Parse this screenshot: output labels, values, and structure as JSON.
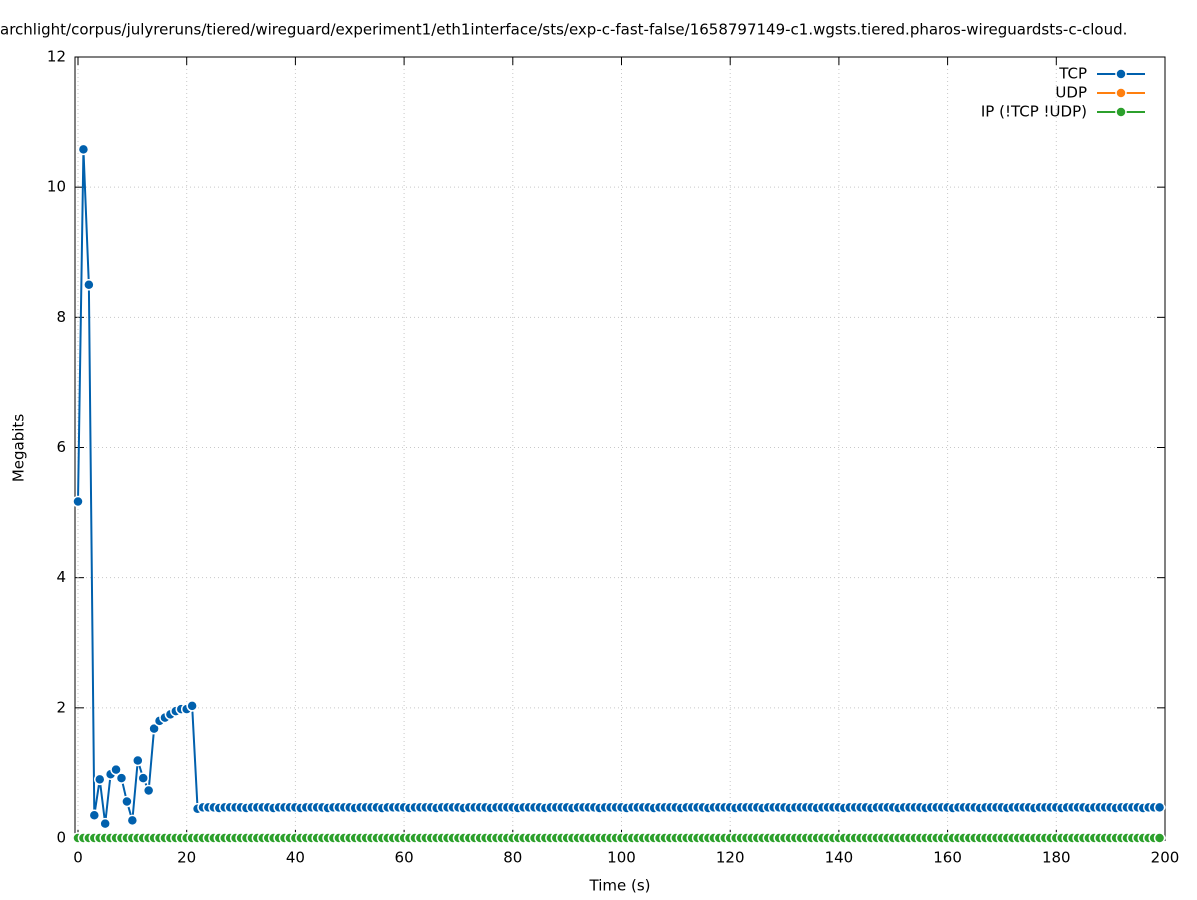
{
  "chart_data": {
    "type": "line",
    "title": "archlight/corpus/julyreruns/tiered/wireguard/experiment1/eth1interface/sts/exp-c-fast-false/1658797149-c1.wgsts.tiered.pharos-wireguardsts-c-cloud.",
    "xlabel": "Time (s)",
    "ylabel": "Megabits",
    "xlim": [
      0,
      200
    ],
    "ylim": [
      0,
      12
    ],
    "xticks": [
      0,
      20,
      40,
      60,
      80,
      100,
      120,
      140,
      160,
      180,
      200
    ],
    "yticks": [
      0,
      2,
      4,
      6,
      8,
      10,
      12
    ],
    "grid": true,
    "legend": "top-right",
    "x": [
      0,
      1,
      2,
      3,
      4,
      5,
      6,
      7,
      8,
      9,
      10,
      11,
      12,
      13,
      14,
      15,
      16,
      17,
      18,
      19,
      20,
      21,
      22,
      23,
      24,
      25,
      26,
      27,
      28,
      29,
      30,
      31,
      32,
      33,
      34,
      35,
      36,
      37,
      38,
      39,
      40,
      41,
      42,
      43,
      44,
      45,
      46,
      47,
      48,
      49,
      50,
      51,
      52,
      53,
      54,
      55,
      56,
      57,
      58,
      59,
      60,
      61,
      62,
      63,
      64,
      65,
      66,
      67,
      68,
      69,
      70,
      71,
      72,
      73,
      74,
      75,
      76,
      77,
      78,
      79,
      80,
      81,
      82,
      83,
      84,
      85,
      86,
      87,
      88,
      89,
      90,
      91,
      92,
      93,
      94,
      95,
      96,
      97,
      98,
      99,
      100,
      101,
      102,
      103,
      104,
      105,
      106,
      107,
      108,
      109,
      110,
      111,
      112,
      113,
      114,
      115,
      116,
      117,
      118,
      119,
      120,
      121,
      122,
      123,
      124,
      125,
      126,
      127,
      128,
      129,
      130,
      131,
      132,
      133,
      134,
      135,
      136,
      137,
      138,
      139,
      140,
      141,
      142,
      143,
      144,
      145,
      146,
      147,
      148,
      149,
      150,
      151,
      152,
      153,
      154,
      155,
      156,
      157,
      158,
      159,
      160,
      161,
      162,
      163,
      164,
      165,
      166,
      167,
      168,
      169,
      170,
      171,
      172,
      173,
      174,
      175,
      176,
      177,
      178,
      179,
      180,
      181,
      182,
      183,
      184,
      185,
      186,
      187,
      188,
      189,
      190,
      191,
      192,
      193,
      194,
      195,
      196,
      197,
      198,
      199
    ],
    "series": [
      {
        "name": "TCP",
        "color": "#0060ad",
        "values": [
          5.17,
          10.58,
          8.5,
          0.35,
          0.9,
          0.22,
          0.98,
          1.05,
          0.92,
          0.56,
          0.27,
          1.19,
          0.92,
          0.73,
          1.68,
          1.8,
          1.85,
          1.9,
          1.95,
          1.98,
          1.98,
          2.03,
          0.45,
          0.47,
          0.47,
          0.47,
          0.46,
          0.47,
          0.47,
          0.47,
          0.47,
          0.46,
          0.47,
          0.47,
          0.47,
          0.47,
          0.46,
          0.47,
          0.47,
          0.47,
          0.47,
          0.46,
          0.47,
          0.47,
          0.47,
          0.47,
          0.46,
          0.47,
          0.47,
          0.47,
          0.47,
          0.46,
          0.47,
          0.47,
          0.47,
          0.47,
          0.46,
          0.47,
          0.47,
          0.47,
          0.47,
          0.46,
          0.47,
          0.47,
          0.47,
          0.47,
          0.46,
          0.47,
          0.47,
          0.47,
          0.47,
          0.46,
          0.47,
          0.47,
          0.47,
          0.47,
          0.46,
          0.47,
          0.47,
          0.47,
          0.47,
          0.46,
          0.47,
          0.47,
          0.47,
          0.47,
          0.46,
          0.47,
          0.47,
          0.47,
          0.47,
          0.46,
          0.47,
          0.47,
          0.47,
          0.47,
          0.46,
          0.47,
          0.47,
          0.47,
          0.47,
          0.46,
          0.47,
          0.47,
          0.47,
          0.47,
          0.46,
          0.47,
          0.47,
          0.47,
          0.47,
          0.46,
          0.47,
          0.47,
          0.47,
          0.47,
          0.46,
          0.47,
          0.47,
          0.47,
          0.47,
          0.46,
          0.47,
          0.47,
          0.47,
          0.47,
          0.46,
          0.47,
          0.47,
          0.47,
          0.47,
          0.46,
          0.47,
          0.47,
          0.47,
          0.47,
          0.46,
          0.47,
          0.47,
          0.47,
          0.47,
          0.46,
          0.47,
          0.47,
          0.47,
          0.47,
          0.46,
          0.47,
          0.47,
          0.47,
          0.47,
          0.46,
          0.47,
          0.47,
          0.47,
          0.47,
          0.46,
          0.47,
          0.47,
          0.47,
          0.47,
          0.46,
          0.47,
          0.47,
          0.47,
          0.47,
          0.46,
          0.47,
          0.47,
          0.47,
          0.47,
          0.46,
          0.47,
          0.47,
          0.47,
          0.47,
          0.46,
          0.47,
          0.47,
          0.47,
          0.47,
          0.46,
          0.47,
          0.47,
          0.47,
          0.47,
          0.46,
          0.47,
          0.47,
          0.47,
          0.47,
          0.46,
          0.47,
          0.47,
          0.47,
          0.47,
          0.46,
          0.47,
          0.47,
          0.47
        ]
      },
      {
        "name": "UDP",
        "color": "#ff7f0e",
        "values": [
          0,
          0,
          0,
          0,
          0,
          0,
          0,
          0,
          0,
          0,
          0,
          0,
          0,
          0,
          0,
          0,
          0,
          0,
          0,
          0,
          0,
          0,
          0,
          0,
          0,
          0,
          0,
          0,
          0,
          0,
          0,
          0,
          0,
          0,
          0,
          0,
          0,
          0,
          0,
          0,
          0,
          0,
          0,
          0,
          0,
          0,
          0,
          0,
          0,
          0,
          0,
          0,
          0,
          0,
          0,
          0,
          0,
          0,
          0,
          0,
          0,
          0,
          0,
          0,
          0,
          0,
          0,
          0,
          0,
          0,
          0,
          0,
          0,
          0,
          0,
          0,
          0,
          0,
          0,
          0,
          0,
          0,
          0,
          0,
          0,
          0,
          0,
          0,
          0,
          0,
          0,
          0,
          0,
          0,
          0,
          0,
          0,
          0,
          0,
          0,
          0,
          0,
          0,
          0,
          0,
          0,
          0,
          0,
          0,
          0,
          0,
          0,
          0,
          0,
          0,
          0,
          0,
          0,
          0,
          0,
          0,
          0,
          0,
          0,
          0,
          0,
          0,
          0,
          0,
          0,
          0,
          0,
          0,
          0,
          0,
          0,
          0,
          0,
          0,
          0,
          0,
          0,
          0,
          0,
          0,
          0,
          0,
          0,
          0,
          0,
          0,
          0,
          0,
          0,
          0,
          0,
          0,
          0,
          0,
          0,
          0,
          0,
          0,
          0,
          0,
          0,
          0,
          0,
          0,
          0,
          0,
          0,
          0,
          0,
          0,
          0,
          0,
          0,
          0,
          0,
          0,
          0,
          0,
          0,
          0,
          0,
          0,
          0,
          0,
          0,
          0,
          0,
          0,
          0,
          0,
          0,
          0,
          0,
          0,
          0
        ]
      },
      {
        "name": "IP (!TCP  !UDP)",
        "color": "#2ca02c",
        "values": [
          0,
          0,
          0,
          0,
          0,
          0,
          0,
          0,
          0,
          0,
          0,
          0,
          0,
          0,
          0,
          0,
          0,
          0,
          0,
          0,
          0,
          0,
          0,
          0,
          0,
          0,
          0,
          0,
          0,
          0,
          0,
          0,
          0,
          0,
          0,
          0,
          0,
          0,
          0,
          0,
          0,
          0,
          0,
          0,
          0,
          0,
          0,
          0,
          0,
          0,
          0,
          0,
          0,
          0,
          0,
          0,
          0,
          0,
          0,
          0,
          0,
          0,
          0,
          0,
          0,
          0,
          0,
          0,
          0,
          0,
          0,
          0,
          0,
          0,
          0,
          0,
          0,
          0,
          0,
          0,
          0,
          0,
          0,
          0,
          0,
          0,
          0,
          0,
          0,
          0,
          0,
          0,
          0,
          0,
          0,
          0,
          0,
          0,
          0,
          0,
          0,
          0,
          0,
          0,
          0,
          0,
          0,
          0,
          0,
          0,
          0,
          0,
          0,
          0,
          0,
          0,
          0,
          0,
          0,
          0,
          0,
          0,
          0,
          0,
          0,
          0,
          0,
          0,
          0,
          0,
          0,
          0,
          0,
          0,
          0,
          0,
          0,
          0,
          0,
          0,
          0,
          0,
          0,
          0,
          0,
          0,
          0,
          0,
          0,
          0,
          0,
          0,
          0,
          0,
          0,
          0,
          0,
          0,
          0,
          0,
          0,
          0,
          0,
          0,
          0,
          0,
          0,
          0,
          0,
          0,
          0,
          0,
          0,
          0,
          0,
          0,
          0,
          0,
          0,
          0,
          0,
          0,
          0,
          0,
          0,
          0,
          0,
          0,
          0,
          0,
          0,
          0,
          0,
          0,
          0,
          0,
          0,
          0,
          0,
          0
        ]
      }
    ]
  }
}
